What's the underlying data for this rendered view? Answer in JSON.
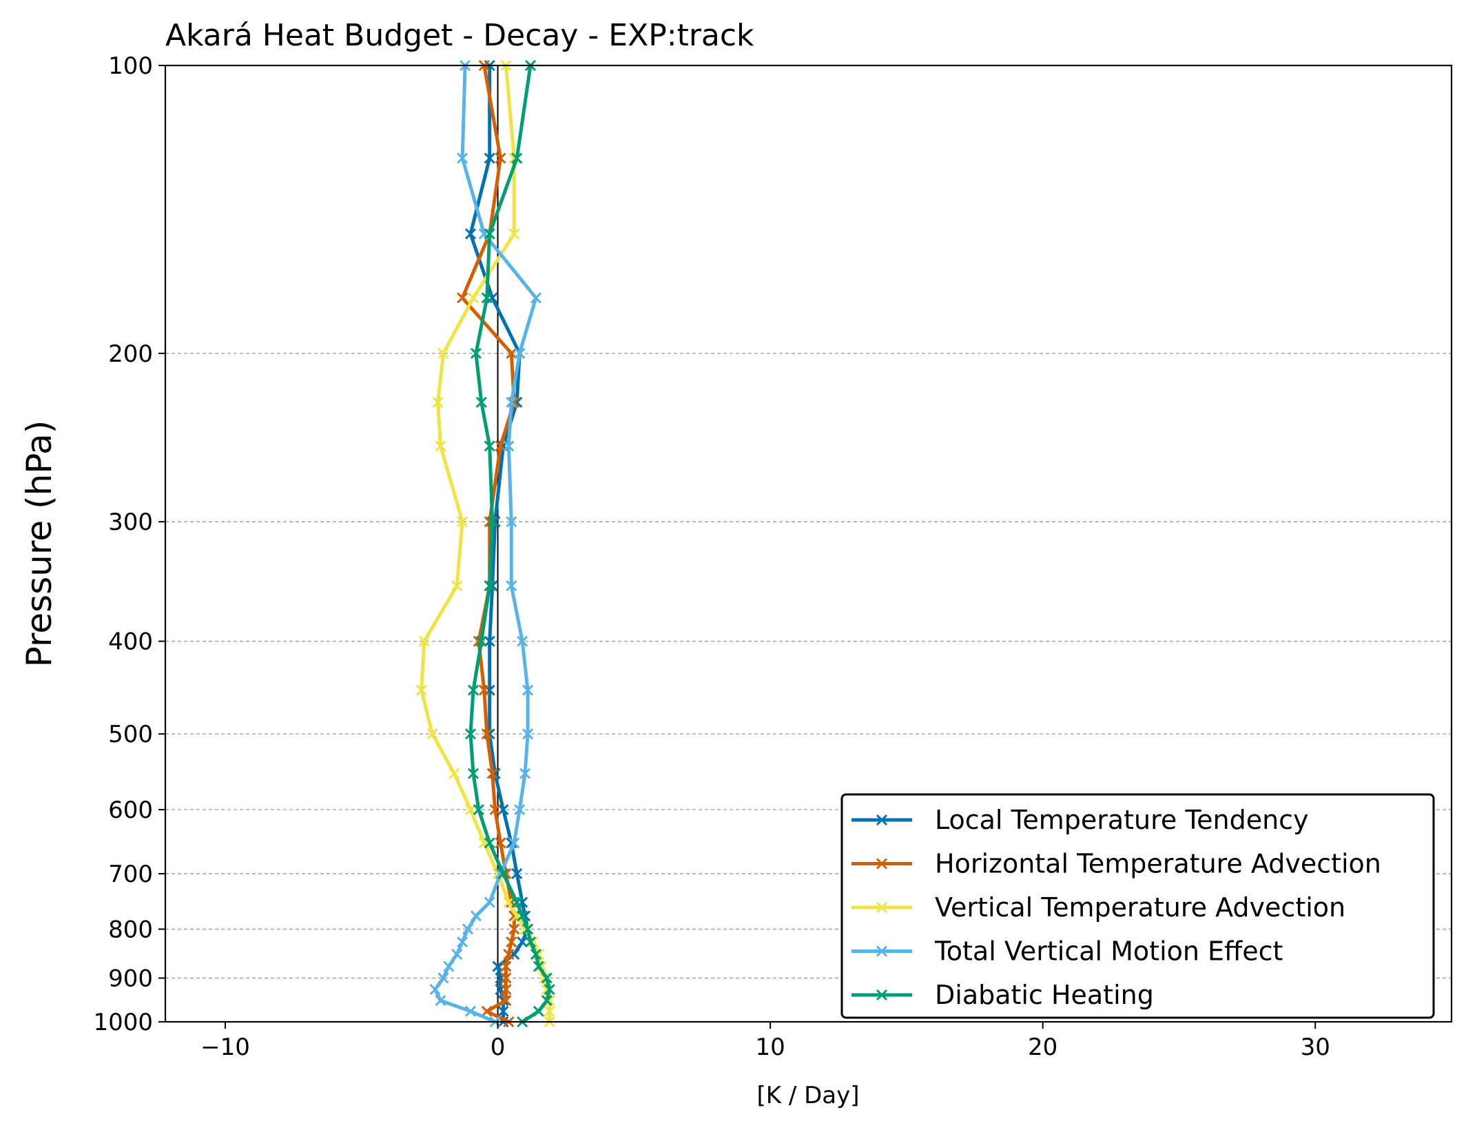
{
  "chart_data": {
    "type": "line",
    "title": "Akará Heat Budget - Decay - EXP:track",
    "xlabel": "[K / Day]",
    "ylabel": "Pressure (hPa)",
    "xlim": [
      -12.2,
      35
    ],
    "ylim": [
      1000,
      100
    ],
    "yscale": "log",
    "xticks": [
      -10,
      0,
      10,
      20,
      30
    ],
    "xtick_labels": [
      "−10",
      "0",
      "10",
      "20",
      "30"
    ],
    "yticks": [
      100,
      200,
      300,
      400,
      500,
      600,
      700,
      800,
      900,
      1000
    ],
    "ytick_labels": [
      "100",
      "200",
      "300",
      "400",
      "500",
      "600",
      "700",
      "800",
      "900",
      "1000"
    ],
    "grid": "horizontal dashed",
    "zero_line": true,
    "legend_position": "lower-right",
    "pressure_levels": [
      100,
      125,
      150,
      175,
      200,
      225,
      250,
      300,
      350,
      400,
      450,
      500,
      550,
      600,
      650,
      700,
      750,
      775,
      800,
      825,
      850,
      875,
      900,
      925,
      950,
      975,
      1000
    ],
    "series": [
      {
        "name": "Local Temperature Tendency",
        "color": "#0072b2",
        "x": [
          -0.3,
          -0.3,
          -1.0,
          -0.2,
          0.8,
          0.7,
          0.2,
          -0.1,
          -0.2,
          -0.3,
          -0.3,
          -0.3,
          -0.1,
          0.2,
          0.5,
          0.7,
          0.9,
          1.0,
          1.1,
          0.9,
          0.6,
          0.0,
          0.1,
          0.1,
          0.2,
          0.2,
          0.2
        ]
      },
      {
        "name": "Horizontal Temperature Advection",
        "color": "#d55e00",
        "x": [
          -0.5,
          0.1,
          -0.3,
          -1.3,
          0.5,
          0.6,
          0.1,
          -0.3,
          -0.3,
          -0.7,
          -0.5,
          -0.4,
          -0.2,
          -0.1,
          0.1,
          0.3,
          0.5,
          0.6,
          0.6,
          0.5,
          0.4,
          0.3,
          0.3,
          0.3,
          0.3,
          -0.4,
          0.4
        ]
      },
      {
        "name": "Vertical Temperature Advection",
        "color": "#f0e442",
        "x": [
          0.3,
          0.6,
          0.6,
          -0.9,
          -2.0,
          -2.2,
          -2.1,
          -1.3,
          -1.5,
          -2.7,
          -2.8,
          -2.4,
          -1.6,
          -1.0,
          -0.5,
          0.0,
          0.4,
          0.7,
          1.0,
          1.3,
          1.5,
          1.6,
          1.7,
          1.8,
          1.9,
          1.9,
          1.9
        ]
      },
      {
        "name": "Total Vertical Motion Effect",
        "color": "#56b4e9",
        "x": [
          -1.2,
          -1.3,
          -0.5,
          1.4,
          0.8,
          0.5,
          0.4,
          0.5,
          0.5,
          0.9,
          1.1,
          1.1,
          1.0,
          0.8,
          0.6,
          0.1,
          -0.3,
          -0.8,
          -1.1,
          -1.3,
          -1.5,
          -1.8,
          -2.0,
          -2.3,
          -2.1,
          -1.0,
          -0.1
        ]
      },
      {
        "name": "Diabatic Heating",
        "color": "#009e73",
        "x": [
          1.2,
          0.7,
          -0.3,
          -0.4,
          -0.8,
          -0.6,
          -0.3,
          -0.2,
          -0.3,
          -0.6,
          -0.9,
          -1.0,
          -0.9,
          -0.7,
          -0.3,
          0.2,
          0.7,
          0.9,
          1.1,
          1.2,
          1.4,
          1.5,
          1.8,
          1.9,
          1.8,
          1.5,
          0.9
        ]
      }
    ]
  }
}
